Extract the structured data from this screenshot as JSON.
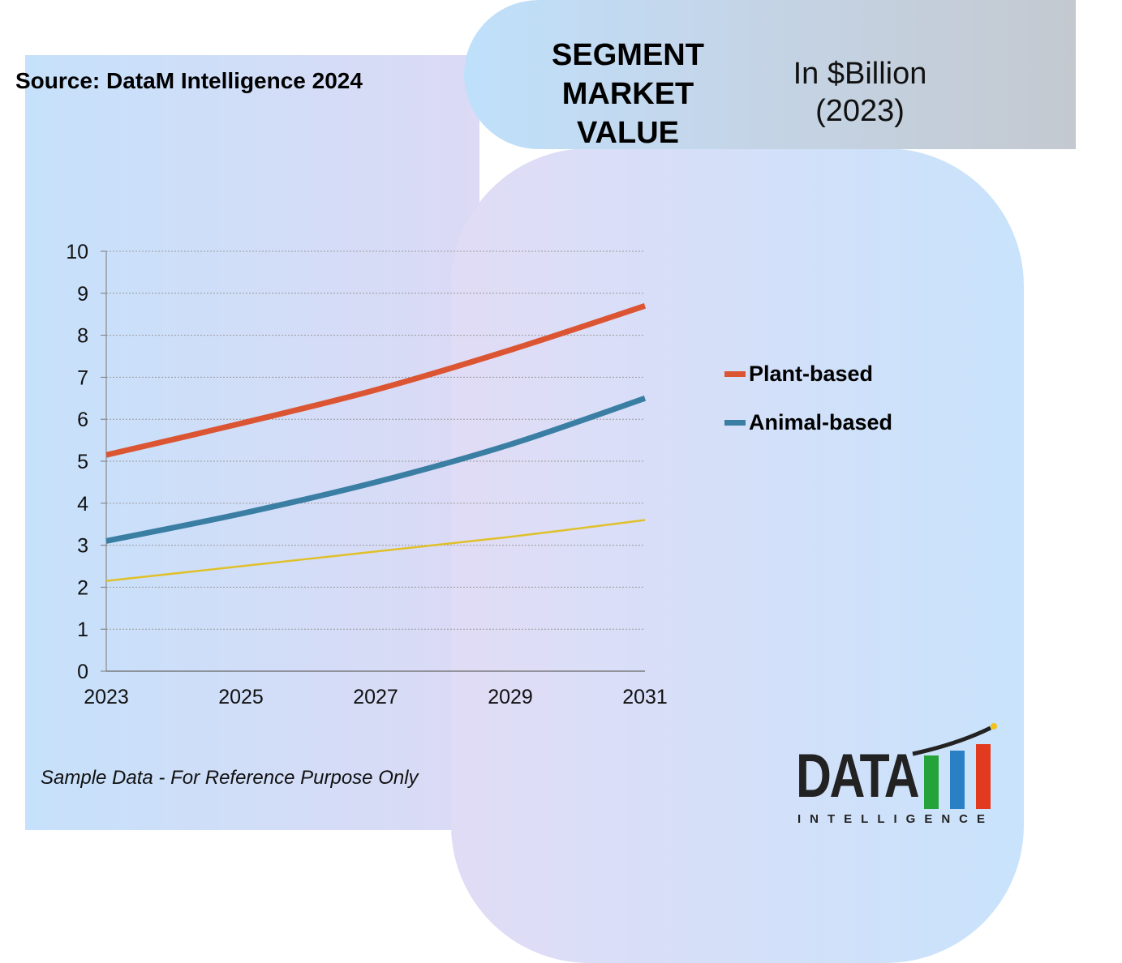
{
  "header": {
    "title_line1": "SEGMENT",
    "title_line2": "MARKET",
    "title_line3": "VALUE",
    "unit_line1": "In $Billion",
    "unit_line2": "(2023)"
  },
  "source": "Source: DataM Intelligence 2024",
  "note": "Sample Data - For Reference Purpose Only",
  "logo": {
    "main": "DATA",
    "sub": "INTELLIGENCE"
  },
  "colors": {
    "plant": "#dc5533",
    "animal": "#3a7fa3",
    "third": "#e0c02a",
    "grid": "#9a9a9a"
  },
  "chart_data": {
    "type": "line",
    "x": [
      2023,
      2025,
      2027,
      2029,
      2031
    ],
    "xticks": [
      "2023",
      "2025",
      "2027",
      "2029",
      "2031"
    ],
    "yticks": [
      "0",
      "1",
      "2",
      "3",
      "4",
      "5",
      "6",
      "7",
      "8",
      "9",
      "10"
    ],
    "ylim": [
      0,
      10
    ],
    "xlim": [
      2023,
      2031
    ],
    "grid": true,
    "legend_position": "right",
    "series": [
      {
        "name": "Plant-based",
        "values": [
          5.15,
          5.9,
          6.7,
          7.65,
          8.7
        ]
      },
      {
        "name": "Animal-based",
        "values": [
          3.1,
          3.75,
          4.5,
          5.4,
          6.5
        ]
      },
      {
        "name": "",
        "values": [
          2.15,
          2.5,
          2.85,
          3.2,
          3.6
        ]
      }
    ]
  }
}
